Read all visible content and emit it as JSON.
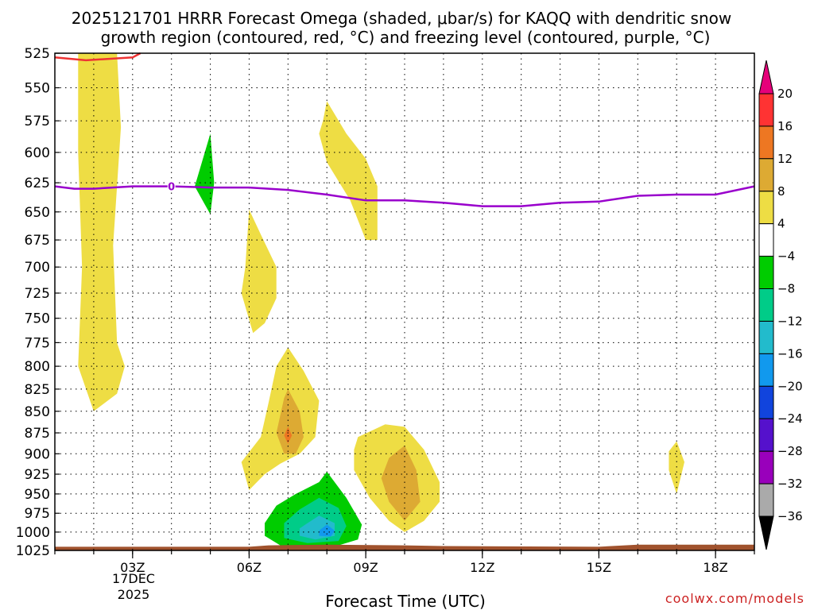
{
  "chart_data": {
    "type": "heatmap",
    "title_line1": "2025121701 HRRR Forecast Omega (shaded, μbar/s) for KAQQ with dendritic snow",
    "title_line2": "growth region (contoured, red, °C) and freezing level (contoured, purple, °C)",
    "xlabel": "Forecast Time (UTC)",
    "ylabel": "",
    "credit": "coolwx.com/models",
    "x_ticks": [
      "03Z",
      "06Z",
      "09Z",
      "12Z",
      "15Z",
      "18Z"
    ],
    "x_tick_hours": [
      3,
      6,
      9,
      12,
      15,
      18
    ],
    "date_label_line1": "17DEC",
    "date_label_line2": "2025",
    "xlim_hours": [
      1,
      19
    ],
    "y_ticks": [
      525,
      550,
      575,
      600,
      625,
      650,
      675,
      700,
      725,
      750,
      775,
      800,
      825,
      850,
      875,
      900,
      925,
      950,
      975,
      1000,
      1025
    ],
    "y_tick_labels": [
      "525",
      "550",
      "575",
      "600",
      "625",
      "650",
      "675",
      "700",
      "725",
      "750",
      "775",
      "800",
      "825",
      "850",
      "875",
      "900",
      "925",
      "950",
      "975",
      "1000",
      "1025"
    ],
    "ylim_hPa": [
      525,
      1025
    ],
    "y_scale": "log-pressure",
    "grid": "dotted",
    "freezing_level_label": "0",
    "freezing_level": [
      [
        1.0,
        628
      ],
      [
        1.5,
        630
      ],
      [
        2.0,
        630
      ],
      [
        3.0,
        628
      ],
      [
        4.0,
        628
      ],
      [
        5.0,
        629
      ],
      [
        6.0,
        629
      ],
      [
        7.0,
        631
      ],
      [
        8.0,
        635
      ],
      [
        9.0,
        640
      ],
      [
        10.0,
        640
      ],
      [
        11.0,
        642
      ],
      [
        12.0,
        645
      ],
      [
        13.0,
        645
      ],
      [
        14.0,
        642
      ],
      [
        15.0,
        641
      ],
      [
        16.0,
        636
      ],
      [
        17.0,
        635
      ],
      [
        18.0,
        635
      ],
      [
        19.0,
        628
      ]
    ],
    "dgz_contour": [
      [
        1.0,
        528
      ],
      [
        1.8,
        530
      ],
      [
        3.0,
        528
      ],
      [
        3.2,
        525
      ]
    ],
    "colorbar": {
      "labels": [
        "20",
        "16",
        "12",
        "8",
        "4",
        "−4",
        "−8",
        "−12",
        "−16",
        "−20",
        "−24",
        "−28",
        "−32",
        "−36"
      ],
      "top_arrow_color": "#e6007a",
      "bottom_arrow_color": "#000000",
      "colors": [
        "#ff3333",
        "#ee7722",
        "#ddaa33",
        "#eedd44",
        "#ffffff",
        "#00cc00",
        "#00cc88",
        "#22bbcc",
        "#1199ee",
        "#1144dd",
        "#5511cc",
        "#9900bb",
        "#aaaaaa"
      ]
    },
    "omega_regions": [
      {
        "name": "col-a",
        "level": 4,
        "color": "#eedd44",
        "points": [
          [
            1.6,
            525
          ],
          [
            2.6,
            525
          ],
          [
            2.7,
            580
          ],
          [
            2.5,
            680
          ],
          [
            2.6,
            775
          ],
          [
            2.8,
            800
          ],
          [
            2.6,
            830
          ],
          [
            2.0,
            850
          ],
          [
            1.6,
            800
          ],
          [
            1.7,
            700
          ],
          [
            1.6,
            600
          ]
        ]
      },
      {
        "name": "upper-b",
        "level": 4,
        "color": "#eedd44",
        "points": [
          [
            7.9,
            575
          ],
          [
            8.0,
            560
          ],
          [
            8.5,
            585
          ],
          [
            9.0,
            605
          ],
          [
            9.3,
            628
          ],
          [
            9.3,
            675
          ],
          [
            9.0,
            675
          ],
          [
            8.6,
            640
          ],
          [
            8.0,
            608
          ],
          [
            7.8,
            585
          ]
        ]
      },
      {
        "name": "mid-c",
        "level": 4,
        "color": "#eedd44",
        "points": [
          [
            6.0,
            648
          ],
          [
            6.3,
            670
          ],
          [
            6.7,
            700
          ],
          [
            6.7,
            730
          ],
          [
            6.4,
            755
          ],
          [
            6.1,
            765
          ],
          [
            5.8,
            725
          ],
          [
            5.9,
            700
          ]
        ]
      },
      {
        "name": "low-d",
        "level": 4,
        "color": "#eedd44",
        "points": [
          [
            6.7,
            800
          ],
          [
            7.0,
            780
          ],
          [
            7.4,
            805
          ],
          [
            7.8,
            838
          ],
          [
            7.7,
            880
          ],
          [
            7.3,
            900
          ],
          [
            6.8,
            912
          ],
          [
            6.4,
            925
          ],
          [
            6.0,
            945
          ],
          [
            5.8,
            910
          ],
          [
            6.3,
            880
          ],
          [
            6.5,
            840
          ]
        ]
      },
      {
        "name": "low-e",
        "level": 4,
        "color": "#eedd44",
        "points": [
          [
            8.8,
            880
          ],
          [
            9.5,
            865
          ],
          [
            10.0,
            868
          ],
          [
            10.5,
            895
          ],
          [
            10.9,
            935
          ],
          [
            10.9,
            960
          ],
          [
            10.5,
            985
          ],
          [
            10.0,
            1000
          ],
          [
            9.6,
            985
          ],
          [
            9.1,
            955
          ],
          [
            8.7,
            920
          ],
          [
            8.7,
            895
          ]
        ]
      },
      {
        "name": "far-f",
        "level": 4,
        "color": "#eedd44",
        "points": [
          [
            16.8,
            897
          ],
          [
            17.0,
            885
          ],
          [
            17.2,
            910
          ],
          [
            17.0,
            950
          ],
          [
            16.8,
            920
          ]
        ]
      },
      {
        "name": "low-d-inner",
        "level": 8,
        "color": "#ddaa33",
        "points": [
          [
            6.9,
            835
          ],
          [
            7.0,
            825
          ],
          [
            7.3,
            850
          ],
          [
            7.4,
            880
          ],
          [
            7.2,
            900
          ],
          [
            6.9,
            900
          ],
          [
            6.7,
            875
          ]
        ]
      },
      {
        "name": "low-d-core",
        "level": 12,
        "color": "#ee7722",
        "points": [
          [
            7.0,
            868
          ],
          [
            7.1,
            878
          ],
          [
            7.0,
            888
          ],
          [
            6.9,
            878
          ]
        ]
      },
      {
        "name": "low-e-inner",
        "level": 8,
        "color": "#ddaa33",
        "points": [
          [
            9.6,
            905
          ],
          [
            10.0,
            890
          ],
          [
            10.3,
            920
          ],
          [
            10.4,
            960
          ],
          [
            10.0,
            985
          ],
          [
            9.6,
            960
          ],
          [
            9.4,
            930
          ]
        ]
      },
      {
        "name": "green-upper",
        "level": -4,
        "color": "#00cc00",
        "points": [
          [
            4.6,
            628
          ],
          [
            5.0,
            585
          ],
          [
            5.1,
            625
          ],
          [
            5.0,
            652
          ],
          [
            4.8,
            640
          ]
        ]
      },
      {
        "name": "green-low",
        "level": -4,
        "color": "#00cc00",
        "points": [
          [
            6.4,
            988
          ],
          [
            6.7,
            965
          ],
          [
            7.2,
            950
          ],
          [
            7.8,
            935
          ],
          [
            8.0,
            922
          ],
          [
            8.5,
            955
          ],
          [
            8.9,
            990
          ],
          [
            8.8,
            1010
          ],
          [
            8.3,
            1018
          ],
          [
            7.5,
            1020
          ],
          [
            6.8,
            1018
          ],
          [
            6.4,
            1005
          ]
        ]
      },
      {
        "name": "teal-low",
        "level": -8,
        "color": "#00cc88",
        "points": [
          [
            6.9,
            988
          ],
          [
            7.3,
            970
          ],
          [
            7.8,
            955
          ],
          [
            8.3,
            968
          ],
          [
            8.5,
            992
          ],
          [
            8.3,
            1012
          ],
          [
            7.5,
            1015
          ],
          [
            6.9,
            1008
          ]
        ]
      },
      {
        "name": "cyan-low",
        "level": -12,
        "color": "#22bbcc",
        "points": [
          [
            7.3,
            995
          ],
          [
            7.8,
            978
          ],
          [
            8.2,
            988
          ],
          [
            8.2,
            1005
          ],
          [
            7.7,
            1010
          ],
          [
            7.3,
            1005
          ]
        ]
      },
      {
        "name": "blue-low",
        "level": -16,
        "color": "#1199ee",
        "points": [
          [
            7.8,
            998
          ],
          [
            8.0,
            990
          ],
          [
            8.2,
            998
          ],
          [
            8.1,
            1006
          ],
          [
            7.8,
            1005
          ]
        ]
      }
    ],
    "terrain_color": "#a0522d",
    "terrain": [
      [
        1.0,
        1020
      ],
      [
        6.0,
        1020
      ],
      [
        6.5,
        1018
      ],
      [
        8.0,
        1017
      ],
      [
        10.0,
        1018
      ],
      [
        11.0,
        1019
      ],
      [
        15.0,
        1020
      ],
      [
        16.0,
        1017
      ],
      [
        19.0,
        1017
      ]
    ]
  }
}
